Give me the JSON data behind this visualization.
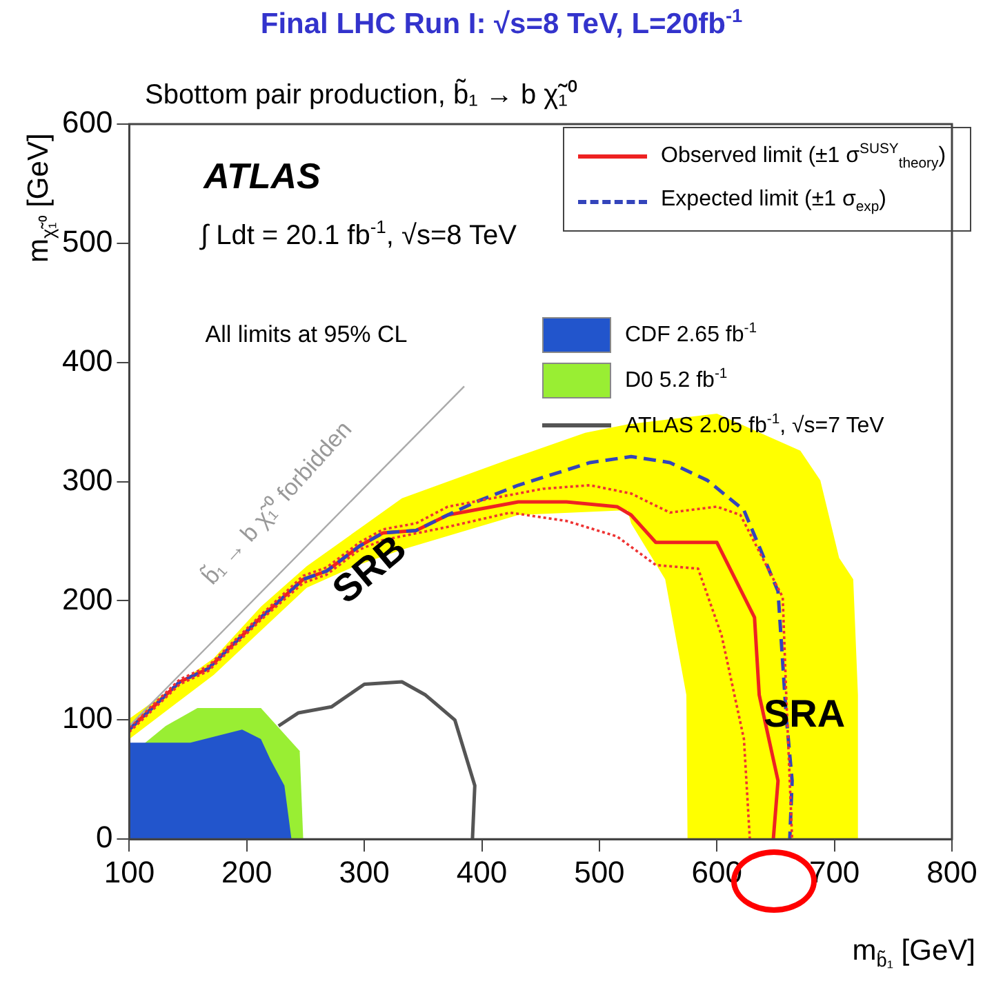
{
  "chart_data": {
    "type": "line",
    "title": "Final LHC Run I: √s=8 TeV, L=20fb$^{-1}$",
    "subtitle": "Sbottom pair production, b̃₁ → b χ̃₁⁰",
    "xlabel": "m$_{b̃₁}$ [GeV]",
    "ylabel": "m$_{χ̃₁⁰}$ [GeV]",
    "xlim": [
      100,
      800
    ],
    "xticks": [
      100,
      200,
      300,
      400,
      500,
      600,
      700,
      800
    ],
    "ylim": [
      0,
      600
    ],
    "yticks": [
      0,
      100,
      200,
      300,
      400,
      500,
      600
    ],
    "grid": false,
    "legend": "top right",
    "series": [
      {
        "name": "Observed limit (±1 σ$^{SUSY}$$_{theory}$)",
        "type": "line",
        "color": "#ee2222",
        "line_style": "solid",
        "x": [
          100,
          143,
          167,
          212,
          248,
          268,
          296,
          316,
          344,
          371,
          431,
          472,
          515,
          527,
          548,
          600,
          632,
          636,
          652,
          648
        ],
        "values": [
          92,
          132,
          143,
          186,
          218,
          225,
          246,
          257,
          259,
          272,
          283,
          283,
          279,
          272,
          249,
          249,
          186,
          121,
          49,
          0
        ]
      },
      {
        "name": "Expected limit (±1 σ$_{exp}$)",
        "type": "line",
        "color": "#3344bb",
        "line_style": "dashed",
        "x": [
          100,
          143,
          167,
          212,
          248,
          268,
          296,
          316,
          344,
          371,
          395,
          431,
          492,
          527,
          560,
          592,
          623,
          652,
          659,
          664,
          662
        ],
        "values": [
          92,
          132,
          143,
          186,
          218,
          225,
          246,
          257,
          259,
          272,
          283,
          297,
          316,
          321,
          316,
          301,
          276,
          208,
          103,
          49,
          0
        ]
      },
      {
        "name": "CDF 2.65 fb$^{-1}$",
        "type": "area",
        "color": "#2255cc",
        "x": [
          100,
          100,
          152,
          196,
          212,
          220,
          232,
          238
        ],
        "values": [
          0,
          81,
          81,
          92,
          84,
          67,
          45,
          0
        ]
      },
      {
        "name": "D0 5.2 fb$^{-1}$",
        "type": "area",
        "color": "#99ee33",
        "x": [
          100,
          100,
          131,
          158,
          212,
          245,
          248
        ],
        "values": [
          0,
          70,
          95,
          110,
          110,
          74,
          0
        ]
      },
      {
        "name": "ATLAS 2.05 fb$^{-1}$, √s=7 TeV",
        "type": "line",
        "color": "#555555",
        "line_style": "solid",
        "x": [
          227,
          244,
          272,
          300,
          332,
          352,
          377,
          394,
          392
        ],
        "values": [
          95,
          106,
          111,
          130,
          132,
          121,
          100,
          45,
          0
        ]
      },
      {
        "type": "line",
        "color": "#ee3333",
        "line_style": "dotted",
        "x": [
          100,
          143,
          167,
          212,
          248,
          268,
          296,
          316,
          344,
          371,
          452,
          492,
          527,
          560,
          600,
          620,
          656,
          659,
          664
        ],
        "values": [
          94,
          134,
          145,
          188,
          221,
          228,
          249,
          260,
          265,
          279,
          294,
          297,
          290,
          274,
          279,
          272,
          203,
          121,
          0
        ]
      },
      {
        "type": "line",
        "color": "#ee3333",
        "line_style": "dotted",
        "x": [
          100,
          143,
          167,
          212,
          248,
          268,
          296,
          316,
          371,
          424,
          472,
          515,
          548,
          584,
          604,
          623,
          628
        ],
        "values": [
          90,
          130,
          141,
          184,
          215,
          222,
          243,
          251,
          262,
          274,
          267,
          254,
          230,
          227,
          171,
          84,
          0
        ]
      },
      {
        "type": "line",
        "color": "#aaaaaa",
        "line_style": "solid",
        "x": [
          100,
          385
        ],
        "values": [
          95,
          380
        ]
      },
      {
        "type": "area",
        "color": "#ffff00",
        "x": [
          100,
          172,
          212,
          251,
          332,
          424,
          488,
          524,
          600,
          671,
          688,
          704,
          716,
          720,
          720,
          575,
          574,
          556,
          527,
          524,
          431,
          332,
          292,
          251,
          212,
          172,
          100
        ],
        "values": [
          101,
          152,
          195,
          229,
          286,
          319,
          341,
          348,
          357,
          326,
          301,
          236,
          218,
          121,
          0,
          0,
          121,
          218,
          265,
          276,
          272,
          243,
          229,
          211,
          175,
          138,
          84
        ]
      }
    ],
    "annotations": [
      "ATLAS",
      "∫ Ldt = 20.1 fb$^{-1}$,  √s=8 TeV",
      "All limits at 95% CL",
      "b̃₁ → b χ̃₁⁰ forbidden",
      "SRB",
      "SRA"
    ]
  }
}
